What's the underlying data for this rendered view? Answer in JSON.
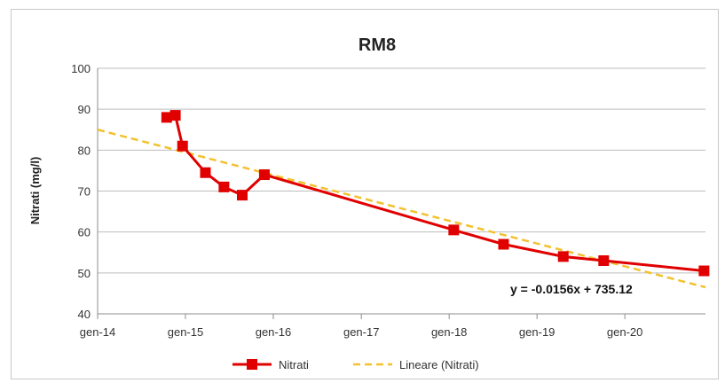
{
  "chart_data": {
    "type": "line",
    "title": "RM8",
    "ylabel": "Nitrati (mg/l)",
    "xlabel": "",
    "ylim": [
      40,
      100
    ],
    "yticks": [
      40,
      50,
      60,
      70,
      80,
      90,
      100
    ],
    "xlim": [
      "2014-01-01",
      "2020-12-01"
    ],
    "xticks": [
      {
        "label": "gen-14",
        "date": "2014-01-01"
      },
      {
        "label": "gen-15",
        "date": "2015-01-01"
      },
      {
        "label": "gen-16",
        "date": "2016-01-01"
      },
      {
        "label": "gen-17",
        "date": "2017-01-01"
      },
      {
        "label": "gen-18",
        "date": "2018-01-01"
      },
      {
        "label": "gen-19",
        "date": "2019-01-01"
      },
      {
        "label": "gen-20",
        "date": "2020-01-01"
      }
    ],
    "grid": "horizontal",
    "legend_position": "bottom",
    "series": [
      {
        "name": "Nitrati",
        "color": "#e00000",
        "marker": "square",
        "points": [
          {
            "x": "2014-10-15",
            "y": 88
          },
          {
            "x": "2014-11-20",
            "y": 88.5
          },
          {
            "x": "2014-12-20",
            "y": 81
          },
          {
            "x": "2015-03-25",
            "y": 74.5
          },
          {
            "x": "2015-06-10",
            "y": 71
          },
          {
            "x": "2015-08-25",
            "y": 69
          },
          {
            "x": "2015-11-25",
            "y": 74
          },
          {
            "x": "2018-01-20",
            "y": 60.5
          },
          {
            "x": "2018-08-15",
            "y": 57
          },
          {
            "x": "2019-04-20",
            "y": 54
          },
          {
            "x": "2019-10-05",
            "y": 53
          },
          {
            "x": "2020-11-25",
            "y": 50.5
          }
        ]
      },
      {
        "name": "Lineare (Nitrati)",
        "color": "#f2c12e",
        "style": "dashed",
        "points": [
          {
            "x": "2014-01-01",
            "y": 85
          },
          {
            "x": "2020-12-01",
            "y": 46.5
          }
        ]
      }
    ],
    "annotations": [
      {
        "text": "y = -0.0156x + 735.12"
      }
    ]
  }
}
